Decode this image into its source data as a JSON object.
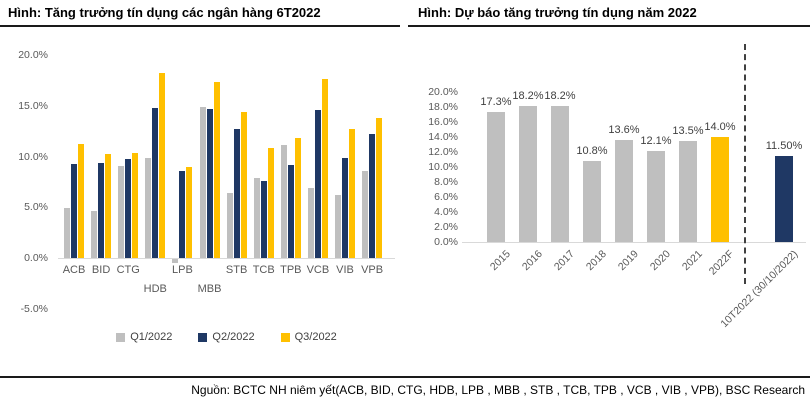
{
  "left_chart": {
    "title": "Hình: Tăng trưởng tín dụng các ngân hàng 6T2022"
  },
  "right_chart": {
    "title": "Hình: Dự báo tăng trưởng tín dụng năm 2022"
  },
  "footer": {
    "source": "Nguồn: BCTC NH niêm yết(ACB, BID, CTG, HDB, LPB , MBB , STB , TCB, TPB , VCB , VIB , VPB), BSC Research"
  },
  "colors": {
    "bar_gray": "#BFBFBF",
    "bar_navy": "#1F3864",
    "bar_gold": "#FFC000",
    "axis_text": "#595959",
    "axis_line": "#D9D9D9",
    "rule": "#1A1A1A"
  },
  "chart_data": [
    {
      "type": "bar",
      "title": "Hình: Tăng trưởng tín dụng các ngân hàng 6T2022",
      "categories": [
        "ACB",
        "BID",
        "CTG",
        "HDB",
        "LPB",
        "MBB",
        "STB",
        "TCB",
        "TPB",
        "VCB",
        "VIB",
        "VPB"
      ],
      "series": [
        {
          "name": "Q1/2022",
          "color": "#BFBFBF",
          "values": [
            4.9,
            4.6,
            9.1,
            9.9,
            -0.4,
            14.9,
            6.4,
            7.9,
            11.1,
            6.9,
            6.2,
            8.6
          ]
        },
        {
          "name": "Q2/2022",
          "color": "#1F3864",
          "values": [
            9.3,
            9.4,
            9.8,
            14.8,
            8.6,
            14.7,
            12.7,
            7.6,
            9.2,
            14.6,
            9.9,
            12.2
          ]
        },
        {
          "name": "Q3/2022",
          "color": "#FFC000",
          "values": [
            11.2,
            10.2,
            10.3,
            18.2,
            9.0,
            17.3,
            14.4,
            10.8,
            11.8,
            17.6,
            12.7,
            13.8
          ]
        }
      ],
      "xlabel": "",
      "ylabel": "",
      "ylim": [
        -5,
        20
      ],
      "yticks": [
        "20.0%",
        "15.0%",
        "10.0%",
        "5.0%",
        "0.0%",
        "-5.0%"
      ],
      "grid": false,
      "legend_position": "bottom",
      "x_label_rows": "HDB and MBB wrap to a second row"
    },
    {
      "type": "bar",
      "title": "Hình: Dự báo tăng trưởng tín dụng năm 2022",
      "categories": [
        "2015",
        "2016",
        "2017",
        "2018",
        "2019",
        "2020",
        "2021",
        "2022F",
        "10T2022 (30/10/2022)"
      ],
      "values": [
        17.3,
        18.2,
        18.2,
        10.8,
        13.6,
        12.1,
        13.5,
        14.0,
        11.5
      ],
      "data_labels": [
        "17.3%",
        "18.2%",
        "18.2%",
        "10.8%",
        "13.6%",
        "12.1%",
        "13.5%",
        "14.0%",
        "11.50%"
      ],
      "bar_colors": [
        "#BFBFBF",
        "#BFBFBF",
        "#BFBFBF",
        "#BFBFBF",
        "#BFBFBF",
        "#BFBFBF",
        "#BFBFBF",
        "#FFC000",
        "#1F3864"
      ],
      "xlabel": "",
      "ylabel": "",
      "ylim": [
        0,
        20
      ],
      "yticks": [
        "20.0%",
        "18.0%",
        "16.0%",
        "14.0%",
        "12.0%",
        "10.0%",
        "8.0%",
        "6.0%",
        "4.0%",
        "2.0%",
        "0.0%"
      ],
      "grid": false,
      "legend_position": "none",
      "annotations": [
        "vertical dashed separator between 2022F and 10T2022 (30/10/2022)"
      ],
      "x_tick_rotation": 45
    }
  ]
}
